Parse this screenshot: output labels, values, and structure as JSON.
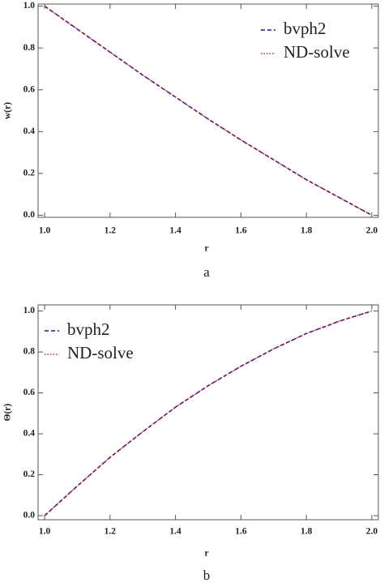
{
  "chart_data": [
    {
      "type": "line",
      "caption": "a",
      "xlabel": "r",
      "ylabel": "w(r)",
      "x": [
        1.0,
        1.1,
        1.2,
        1.3,
        1.4,
        1.5,
        1.6,
        1.7,
        1.8,
        1.9,
        2.0
      ],
      "series": [
        {
          "name": "bvph2",
          "color": "#1a1a8c",
          "values": [
            1,
            0.89,
            0.78,
            0.67,
            0.565,
            0.46,
            0.36,
            0.265,
            0.17,
            0.085,
            0
          ]
        },
        {
          "name": "ND-solve",
          "color": "#c0303a",
          "values": [
            1,
            0.89,
            0.78,
            0.67,
            0.565,
            0.46,
            0.36,
            0.265,
            0.17,
            0.085,
            0
          ]
        }
      ],
      "xlim": [
        0.98,
        2.02
      ],
      "ylim": [
        -0.01,
        1.01
      ],
      "xticks": [
        {
          "value": 1,
          "label": "1.0"
        },
        1.2,
        1.4,
        1.6,
        1.8,
        {
          "value": 2,
          "label": "2.0"
        }
      ],
      "yticks": [
        {
          "value": 0,
          "label": "0.0"
        },
        0.2,
        0.4,
        0.6,
        0.8,
        {
          "value": 1,
          "label": "1.0"
        }
      ],
      "legend": "upper right"
    },
    {
      "type": "line",
      "caption": "b",
      "xlabel": "r",
      "ylabel": "Θ(r)",
      "x": [
        1.0,
        1.1,
        1.2,
        1.3,
        1.4,
        1.5,
        1.6,
        1.7,
        1.8,
        1.9,
        2.0
      ],
      "series": [
        {
          "name": "bvph2",
          "color": "#1a1a8c",
          "values": [
            0,
            0.145,
            0.285,
            0.41,
            0.53,
            0.635,
            0.73,
            0.815,
            0.89,
            0.95,
            1
          ]
        },
        {
          "name": "ND-solve",
          "color": "#c0303a",
          "values": [
            0,
            0.145,
            0.285,
            0.41,
            0.53,
            0.635,
            0.73,
            0.815,
            0.89,
            0.95,
            1
          ]
        }
      ],
      "xlim": [
        0.98,
        2.02
      ],
      "ylim": [
        -0.02,
        1.03
      ],
      "xticks": [
        {
          "value": 1,
          "label": "1.0"
        },
        1.2,
        1.4,
        1.6,
        1.8,
        {
          "value": 2,
          "label": "2.0"
        }
      ],
      "yticks": [
        {
          "value": 0,
          "label": "0.0"
        },
        0.2,
        0.4,
        0.6,
        0.8,
        {
          "value": 1,
          "label": "1.0"
        }
      ],
      "legend": "upper left"
    }
  ]
}
